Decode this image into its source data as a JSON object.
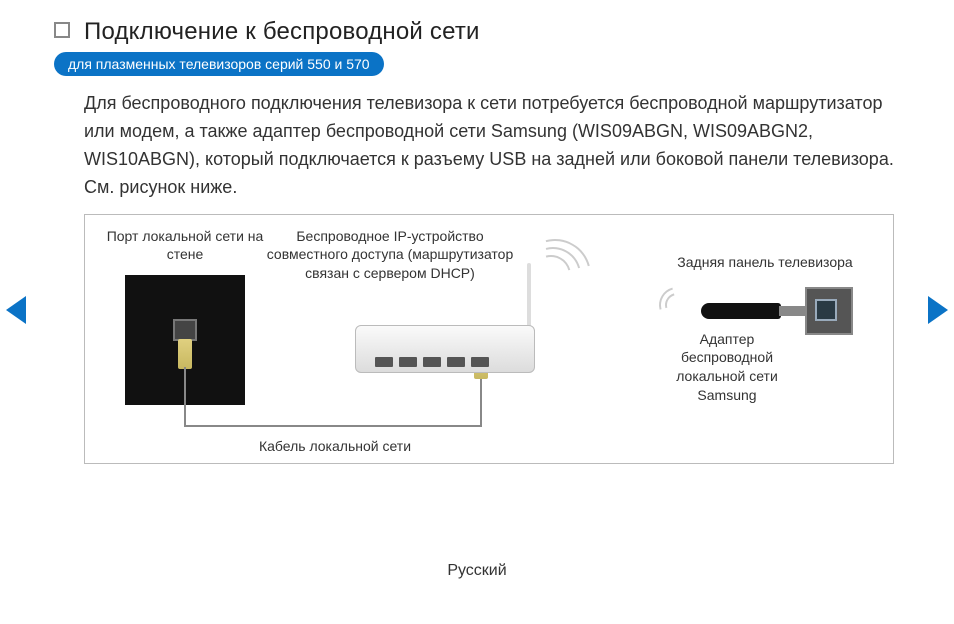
{
  "heading": "Подключение к беспроводной сети",
  "badge": "для плазменных телевизоров серий 550 и 570",
  "body": "Для беспроводного подключения телевизора к сети потребуется беспроводной маршрутизатор или модем, а также адаптер беспроводной сети Samsung (WIS09ABGN, WIS09ABGN2, WIS10ABGN), который подключается к разъему USB на задней или боковой панели телевизора. См. рисунок ниже.",
  "diagram": {
    "wall_port_label": "Порт локальной сети на стене",
    "router_label": "Беспроводное IP-устройство совместного доступа (маршрутизатор связан с сервером DHCP)",
    "tv_label": "Задняя панель телевизора",
    "adapter_label": "Адаптер беспроводной локальной сети Samsung",
    "cable_label": "Кабель локальной сети",
    "colors": {
      "border": "#bbbbbb",
      "wall_plate": "#111111",
      "router_body": "#e8e8e8",
      "tv_panel": "#555555",
      "adapter": "#111111",
      "cable": "#888888",
      "plug": "#d4c470"
    }
  },
  "nav": {
    "color": "#0b73c6"
  },
  "footer_language": "Русский"
}
